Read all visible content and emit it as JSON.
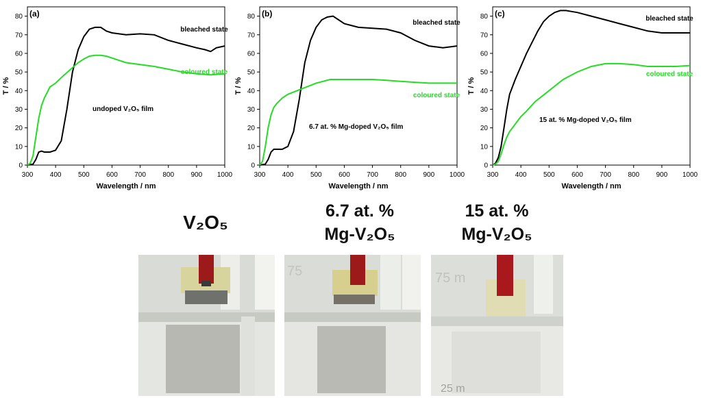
{
  "chart_data": [
    {
      "type": "line",
      "panel_label": "(a)",
      "film_label": "undoped V₂O₅ film",
      "xlabel": "Wavelength / nm",
      "ylabel": "T / %",
      "xlim": [
        300,
        1000
      ],
      "ylim": [
        0,
        85
      ],
      "xticks": [
        300,
        400,
        500,
        600,
        700,
        800,
        900,
        1000
      ],
      "yticks": [
        0,
        10,
        20,
        30,
        40,
        50,
        60,
        70,
        80
      ],
      "series": [
        {
          "name": "bleached state",
          "color": "#000000",
          "x": [
            300,
            320,
            330,
            340,
            350,
            360,
            380,
            400,
            420,
            440,
            460,
            480,
            500,
            520,
            540,
            560,
            580,
            600,
            650,
            700,
            750,
            800,
            850,
            900,
            930,
            950,
            970,
            1000
          ],
          "y": [
            0,
            0.5,
            3,
            7,
            7.5,
            7,
            7,
            8,
            13,
            30,
            50,
            62,
            69,
            73,
            74,
            74,
            72,
            71,
            70,
            70.5,
            70,
            67,
            65,
            63,
            62,
            61,
            63,
            64
          ]
        },
        {
          "name": "coloured state",
          "color": "#22dd22",
          "x": [
            300,
            310,
            320,
            330,
            340,
            350,
            360,
            380,
            400,
            420,
            450,
            480,
            500,
            520,
            540,
            560,
            580,
            600,
            650,
            700,
            750,
            800,
            850,
            900,
            950,
            1000
          ],
          "y": [
            0,
            1,
            5,
            15,
            25,
            32,
            36,
            42,
            44,
            47,
            51,
            55,
            57,
            58.5,
            59,
            59,
            58.5,
            57.5,
            55,
            54,
            53,
            51.5,
            50,
            49,
            48.5,
            49
          ]
        }
      ]
    },
    {
      "type": "line",
      "panel_label": "(b)",
      "film_label": "6.7 at. % Mg-doped V₂O₅ film",
      "xlabel": "Wavelength / nm",
      "ylabel": "T / %",
      "xlim": [
        300,
        1000
      ],
      "ylim": [
        0,
        85
      ],
      "xticks": [
        300,
        400,
        500,
        600,
        700,
        800,
        900,
        1000
      ],
      "yticks": [
        0,
        10,
        20,
        30,
        40,
        50,
        60,
        70,
        80
      ],
      "series": [
        {
          "name": "bleached state",
          "color": "#000000",
          "x": [
            300,
            320,
            330,
            340,
            350,
            360,
            380,
            400,
            420,
            440,
            450,
            460,
            480,
            500,
            520,
            540,
            560,
            580,
            600,
            650,
            700,
            750,
            800,
            850,
            900,
            950,
            1000
          ],
          "y": [
            0,
            0.5,
            3,
            7,
            8.5,
            8.5,
            8.5,
            10,
            18,
            35,
            45,
            55,
            67,
            74,
            78,
            79.5,
            80,
            78,
            76,
            74,
            73.5,
            73,
            71,
            67,
            64,
            63,
            64
          ]
        },
        {
          "name": "coloured state",
          "color": "#22dd22",
          "x": [
            300,
            310,
            320,
            330,
            340,
            350,
            360,
            380,
            400,
            450,
            500,
            550,
            600,
            650,
            700,
            750,
            800,
            850,
            900,
            950,
            1000
          ],
          "y": [
            0,
            2,
            10,
            20,
            27,
            31,
            33,
            36,
            38,
            41,
            44,
            46,
            46,
            46,
            46,
            45.5,
            45,
            44.5,
            44,
            44,
            44
          ]
        }
      ]
    },
    {
      "type": "line",
      "panel_label": "(c)",
      "film_label": "15 at. % Mg-doped V₂O₅ film",
      "xlabel": "Wavelength / nm",
      "ylabel": "T / %",
      "xlim": [
        300,
        1000
      ],
      "ylim": [
        0,
        85
      ],
      "xticks": [
        300,
        400,
        500,
        600,
        700,
        800,
        900,
        1000
      ],
      "yticks": [
        0,
        10,
        20,
        30,
        40,
        50,
        60,
        70,
        80
      ],
      "series": [
        {
          "name": "bleached state",
          "color": "#000000",
          "x": [
            300,
            310,
            320,
            330,
            340,
            350,
            360,
            380,
            400,
            420,
            440,
            460,
            480,
            500,
            520,
            540,
            560,
            580,
            600,
            650,
            700,
            750,
            800,
            850,
            900,
            950,
            1000
          ],
          "y": [
            0,
            1,
            4,
            10,
            20,
            30,
            38,
            46,
            53,
            60,
            66,
            72,
            77,
            80,
            82,
            83,
            83,
            82.5,
            82,
            80,
            78,
            76,
            74,
            72,
            71,
            71,
            71
          ]
        },
        {
          "name": "coloured state",
          "color": "#22dd22",
          "x": [
            300,
            310,
            320,
            330,
            340,
            350,
            360,
            380,
            400,
            420,
            450,
            500,
            550,
            600,
            650,
            700,
            750,
            800,
            850,
            900,
            950,
            1000
          ],
          "y": [
            0,
            0.5,
            2,
            6,
            11,
            15,
            18,
            22,
            26,
            29,
            34,
            40,
            46,
            50,
            53,
            54.5,
            54.5,
            54,
            53,
            53,
            53,
            53.5
          ]
        }
      ]
    }
  ],
  "samples": [
    {
      "label_line1": "",
      "label_main": "V₂O₅",
      "label_line2": ""
    },
    {
      "label_line1": "6.7 at. %",
      "label_main": "",
      "label_line2": "Mg-V₂O₅"
    },
    {
      "label_line1": "15 at. %",
      "label_main": "",
      "label_line2": "Mg-V₂O₅"
    }
  ],
  "photo_scale_labels": [
    "75",
    "75 m",
    "25 m"
  ]
}
